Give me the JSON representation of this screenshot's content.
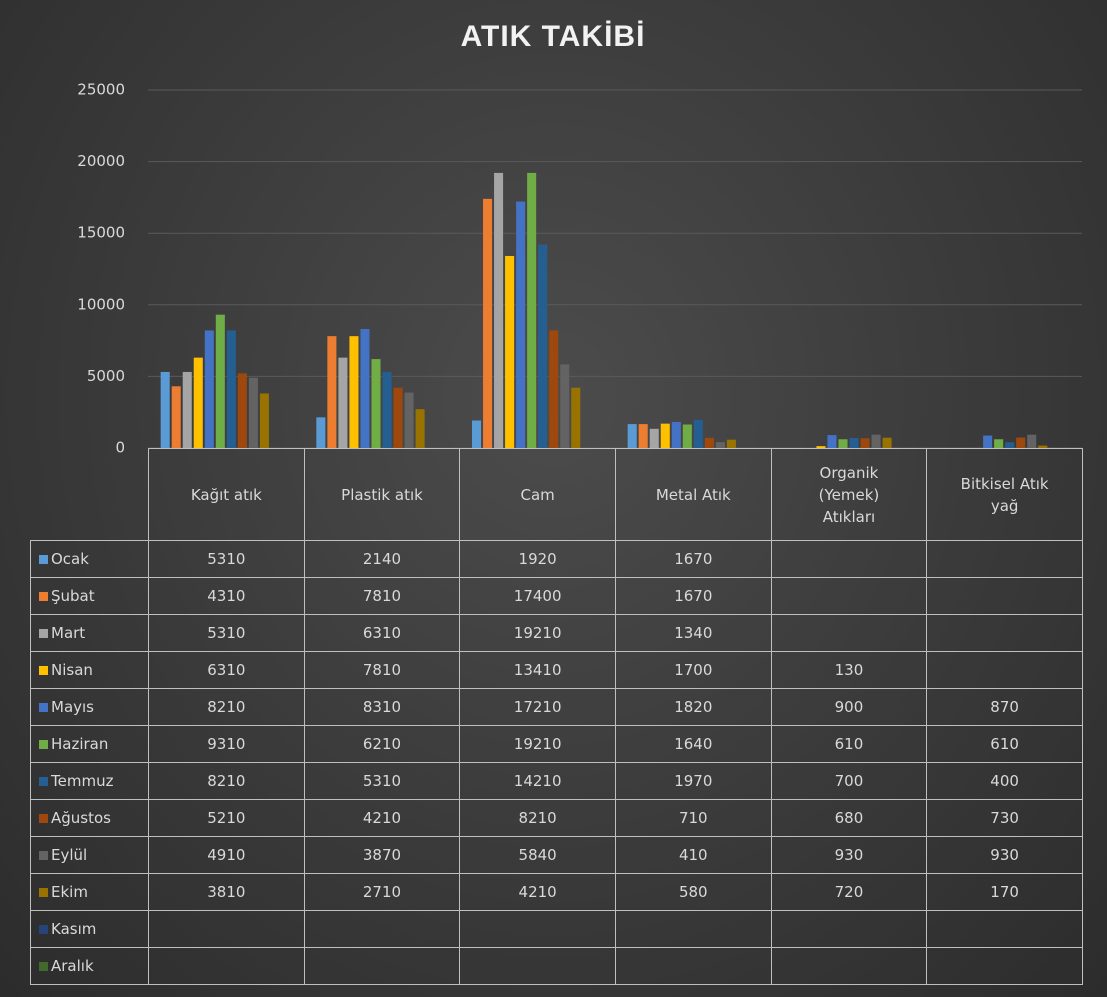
{
  "chart_data": {
    "type": "bar",
    "title": "ATIK TAKİBİ",
    "categories": [
      "Kağıt atık",
      "Plastik atık",
      "Cam",
      "Metal Atık",
      "Organik (Yemek) Atıkları",
      "Bitkisel Atık yağ"
    ],
    "ylim": [
      0,
      25000
    ],
    "yticks": [
      0,
      5000,
      10000,
      15000,
      20000,
      25000
    ],
    "grid": true,
    "series": [
      {
        "name": "Ocak",
        "color": "#5b9bd5",
        "values": [
          5310,
          2140,
          1920,
          1670,
          null,
          null
        ]
      },
      {
        "name": "Şubat",
        "color": "#ed7d31",
        "values": [
          4310,
          7810,
          17400,
          1670,
          null,
          null
        ]
      },
      {
        "name": "Mart",
        "color": "#a5a5a5",
        "values": [
          5310,
          6310,
          19210,
          1340,
          null,
          null
        ]
      },
      {
        "name": "Nisan",
        "color": "#ffc000",
        "values": [
          6310,
          7810,
          13410,
          1700,
          130,
          null
        ]
      },
      {
        "name": "Mayıs",
        "color": "#4472c4",
        "values": [
          8210,
          8310,
          17210,
          1820,
          900,
          870
        ]
      },
      {
        "name": "Haziran",
        "color": "#70ad47",
        "values": [
          9310,
          6210,
          19210,
          1640,
          610,
          610
        ]
      },
      {
        "name": "Temmuz",
        "color": "#255e91",
        "values": [
          8210,
          5310,
          14210,
          1970,
          700,
          400
        ]
      },
      {
        "name": "Ağustos",
        "color": "#9e480e",
        "values": [
          5210,
          4210,
          8210,
          710,
          680,
          730
        ]
      },
      {
        "name": "Eylül",
        "color": "#636363",
        "values": [
          4910,
          3870,
          5840,
          410,
          930,
          930
        ]
      },
      {
        "name": "Ekim",
        "color": "#997300",
        "values": [
          3810,
          2710,
          4210,
          580,
          720,
          170
        ]
      },
      {
        "name": "Kasım",
        "color": "#264478",
        "values": [
          null,
          null,
          null,
          null,
          null,
          null
        ]
      },
      {
        "name": "Aralık",
        "color": "#43682b",
        "values": [
          null,
          null,
          null,
          null,
          null,
          null
        ]
      }
    ]
  }
}
